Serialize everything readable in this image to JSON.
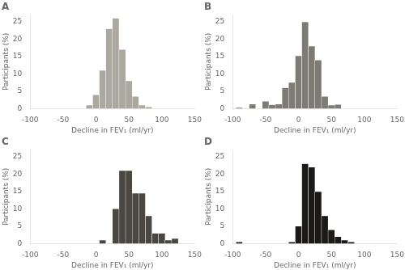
{
  "chart_data": [
    {
      "type": "bar",
      "title": "A",
      "color": "#aaa89f",
      "x": [
        -10,
        0,
        10,
        20,
        30,
        40,
        50,
        60,
        70,
        80
      ],
      "values": [
        1,
        4,
        11,
        23,
        26,
        17,
        8,
        3.5,
        1,
        0.5
      ],
      "xlabel": "Decline in FEV₁ (ml/yr)",
      "ylabel": "Participants (%)",
      "xlim": [
        -100,
        150
      ],
      "xticks": [
        -100,
        -50,
        0,
        50,
        100,
        150
      ],
      "ylim": [
        0,
        27
      ],
      "yticks": [
        0,
        5,
        10,
        15,
        20,
        25
      ],
      "grid": false
    },
    {
      "type": "bar",
      "title": "B",
      "color": "#7d7b74",
      "x": [
        -90,
        -80,
        -70,
        -60,
        -50,
        -40,
        -30,
        -20,
        -10,
        0,
        10,
        20,
        30,
        40,
        50,
        60,
        70
      ],
      "values": [
        0.3,
        0,
        1.3,
        0,
        2.1,
        1.1,
        1.3,
        6.0,
        7.5,
        15.2,
        25.0,
        18.0,
        14.0,
        3.5,
        1.0,
        1.2,
        0
      ],
      "xlabel": "Decline in FEV₁ (ml/yr)",
      "ylabel": "Participants (%)",
      "xlim": [
        -100,
        150
      ],
      "xticks": [
        -100,
        -50,
        0,
        50,
        100,
        150
      ],
      "ylim": [
        0,
        27
      ],
      "yticks": [
        0,
        5,
        10,
        15,
        20,
        25
      ],
      "grid": false
    },
    {
      "type": "bar",
      "title": "C",
      "color": "#4a4642",
      "x": [
        10,
        20,
        30,
        40,
        50,
        60,
        70,
        80,
        90,
        100,
        110,
        120
      ],
      "values": [
        1.0,
        0,
        10.0,
        21.0,
        21.0,
        14.5,
        14.5,
        8.0,
        3.0,
        3.0,
        1.0,
        1.5
      ],
      "xlabel": "Decline in FEV₁ (ml/yr)",
      "ylabel": "Participants (%)",
      "xlim": [
        -100,
        150
      ],
      "xticks": [
        -100,
        -50,
        0,
        50,
        100,
        150
      ],
      "ylim": [
        0,
        27
      ],
      "yticks": [
        0,
        5,
        10,
        15,
        20,
        25
      ],
      "grid": false
    },
    {
      "type": "bar",
      "title": "D",
      "color": "#1c1a18",
      "x": [
        -90,
        -80,
        -70,
        -60,
        -50,
        -40,
        -30,
        -20,
        -10,
        0,
        10,
        20,
        30,
        40,
        50,
        60,
        70,
        80,
        90
      ],
      "values": [
        0.5,
        0,
        0,
        0,
        0,
        0,
        0,
        0,
        0.5,
        5.0,
        23.0,
        22.0,
        15.0,
        8.0,
        4.0,
        2.0,
        1.0,
        0.5,
        0
      ],
      "xlabel": "Decline in FEV₁ (ml/yr)",
      "ylabel": "Participants (%)",
      "xlim": [
        -100,
        150
      ],
      "xticks": [
        -100,
        -50,
        0,
        50,
        100,
        150
      ],
      "ylim": [
        0,
        27
      ],
      "yticks": [
        0,
        5,
        10,
        15,
        20,
        25
      ],
      "grid": false
    }
  ]
}
